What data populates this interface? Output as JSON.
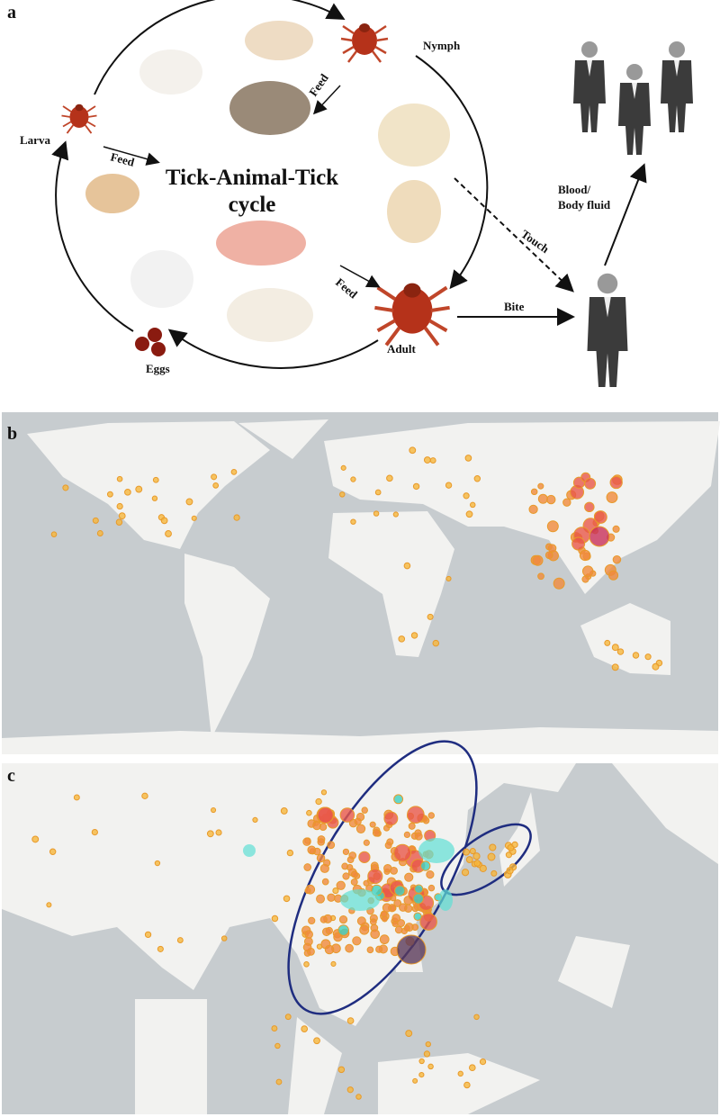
{
  "panel_a": {
    "label": "a",
    "title_lines": [
      "Tick-Animal-Tick",
      "cycle"
    ],
    "stages": {
      "larva": "Larva",
      "nymph": "Nymph",
      "adult": "Adult",
      "eggs": "Eggs"
    },
    "feed_labels": [
      "Feed",
      "Feed",
      "Feed"
    ],
    "transmission": {
      "touch": "Touch",
      "bite": "Bite",
      "blood_lines": [
        "Blood/",
        "Body fluid"
      ]
    }
  },
  "panel_b": {
    "label": "b"
  },
  "panel_c": {
    "label": "c"
  }
}
